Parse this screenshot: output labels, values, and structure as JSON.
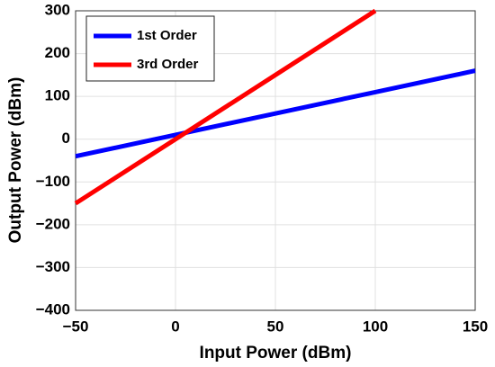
{
  "chart_data": {
    "type": "line",
    "xlabel": "Input Power (dBm)",
    "ylabel": "Output Power (dBm)",
    "x": [
      -50,
      0,
      50,
      100,
      150
    ],
    "series": [
      {
        "name": "1st Order",
        "color": "#0000ff",
        "values": [
          -40,
          10,
          60,
          110,
          160
        ]
      },
      {
        "name": "3rd Order",
        "color": "#ff0000",
        "values": [
          -150,
          0,
          150,
          300,
          null
        ]
      }
    ],
    "xlim": [
      -50,
      150
    ],
    "xticks": [
      -50,
      0,
      50,
      100,
      150
    ],
    "ylim": [
      -400,
      300
    ],
    "yticks": [
      -400,
      -300,
      -200,
      -100,
      0,
      100,
      200,
      300
    ],
    "grid": true,
    "legend": "upper left"
  }
}
